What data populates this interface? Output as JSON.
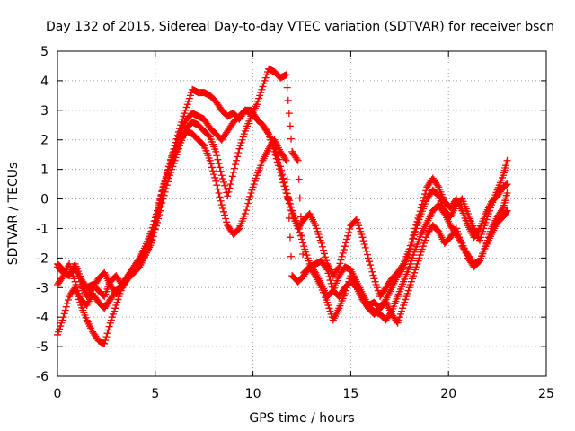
{
  "chart_data": {
    "type": "scatter",
    "title": "Day 132 of 2015, Sidereal Day-to-day VTEC variation (SDTVAR) for receiver bscn",
    "xlabel": "GPS time / hours",
    "ylabel": "SDTVAR / TECUs",
    "xlim": [
      0,
      25
    ],
    "ylim": [
      -6,
      5
    ],
    "xticks": [
      "0",
      "5",
      "10",
      "15",
      "20",
      "25"
    ],
    "yticks": [
      "-6",
      "-5",
      "-4",
      "-3",
      "-2",
      "-1",
      "0",
      "1",
      "2",
      "3",
      "4",
      "5"
    ],
    "grid": true,
    "marker": "+",
    "series_color": "#ff0000",
    "series": [
      {
        "x": [
          0.0,
          0.3,
          0.6,
          0.9,
          1.2,
          1.5,
          1.8,
          2.1,
          2.4,
          2.7,
          3.0,
          3.3,
          3.6,
          3.9,
          4.2,
          4.5,
          4.8,
          5.1,
          5.4,
          5.7,
          6.0,
          6.3,
          6.6,
          6.9,
          7.2,
          7.5,
          7.8,
          8.1,
          8.4,
          8.7,
          9.0,
          9.3,
          9.6,
          9.9,
          10.2,
          10.5,
          10.8,
          11.1,
          11.4,
          11.7,
          12.0,
          12.3,
          12.6,
          12.9,
          13.2,
          13.5,
          13.8,
          14.1,
          14.4,
          14.7,
          15.0,
          15.3,
          15.6,
          15.9,
          16.2,
          16.5,
          16.8,
          17.1,
          17.4,
          17.7,
          18.0,
          18.3,
          18.6,
          18.9,
          19.2,
          19.5,
          19.8,
          20.1,
          20.4,
          20.7,
          21.0,
          21.3,
          21.6,
          21.9,
          22.2,
          22.5,
          22.8,
          23.0
        ],
        "y": [
          -2.3,
          -2.5,
          -2.6,
          -2.2,
          -2.7,
          -3.0,
          -2.9,
          -3.1,
          -3.3,
          -2.8,
          -2.6,
          -2.9,
          -2.7,
          -2.5,
          -2.3,
          -1.9,
          -1.4,
          -0.6,
          0.3,
          1.1,
          1.8,
          2.5,
          3.1,
          3.7,
          3.6,
          3.6,
          3.5,
          3.3,
          3.0,
          2.8,
          2.9,
          2.7,
          3.0,
          3.0,
          2.7,
          2.5,
          2.2,
          1.8,
          1.1,
          0.3,
          -0.4,
          -0.9,
          -1.6,
          -2.2,
          -2.5,
          -2.9,
          -3.3,
          -3.1,
          -2.6,
          -2.3,
          -2.4,
          -2.8,
          -3.2,
          -3.6,
          -3.5,
          -3.7,
          -3.4,
          -3.0,
          -2.6,
          -2.3,
          -1.8,
          -1.1,
          -0.5,
          0.0,
          0.3,
          0.1,
          -0.4,
          -0.6,
          -0.2,
          0.0,
          -0.5,
          -1.0,
          -1.4,
          -0.8,
          -0.2,
          0.3,
          0.8,
          1.3
        ]
      },
      {
        "x": [
          0.0,
          0.3,
          0.6,
          0.9,
          1.2,
          1.5,
          1.8,
          2.1,
          2.4,
          2.7,
          3.0,
          3.3,
          3.6,
          3.9,
          4.2,
          4.5,
          4.8,
          5.1,
          5.4,
          5.7,
          6.0,
          6.3,
          6.6,
          6.9,
          7.2,
          7.5,
          7.8,
          8.1,
          8.4,
          8.7,
          9.0,
          9.3,
          9.6,
          9.9,
          10.2,
          10.5,
          10.8,
          11.1,
          11.4,
          11.7,
          12.0,
          12.3,
          12.6,
          12.9,
          13.2,
          13.5,
          13.8,
          14.1,
          14.4,
          14.7,
          15.0,
          15.3,
          15.6,
          15.9,
          16.2,
          16.5,
          16.8,
          17.1,
          17.4,
          17.7,
          18.0,
          18.3,
          18.6,
          18.9,
          19.2,
          19.5,
          19.8,
          20.1,
          20.4,
          20.7,
          21.0,
          21.3,
          21.6,
          21.9,
          22.2,
          22.5,
          22.8,
          23.0
        ],
        "y": [
          -2.9,
          -2.6,
          -2.2,
          -2.8,
          -3.4,
          -3.6,
          -3.2,
          -3.5,
          -3.7,
          -3.4,
          -3.1,
          -2.9,
          -2.6,
          -2.4,
          -2.1,
          -1.7,
          -1.2,
          -0.5,
          0.4,
          1.1,
          1.7,
          2.3,
          2.7,
          2.9,
          2.8,
          2.7,
          2.4,
          2.2,
          2.0,
          2.3,
          2.6,
          2.8,
          3.0,
          2.9,
          2.7,
          2.5,
          2.2,
          1.6,
          0.9,
          0.2,
          -0.5,
          -1.0,
          -0.7,
          -0.5,
          -0.9,
          -1.5,
          -2.2,
          -2.6,
          -2.3,
          -1.6,
          -0.9,
          -0.7,
          -1.3,
          -2.0,
          -2.7,
          -3.3,
          -3.0,
          -2.7,
          -2.5,
          -2.2,
          -1.7,
          -1.0,
          -0.3,
          0.4,
          0.7,
          0.4,
          -0.1,
          -0.3,
          0.0,
          -0.4,
          -0.9,
          -1.3,
          -1.0,
          -0.5,
          -0.1,
          0.1,
          0.4,
          0.5
        ]
      },
      {
        "x": [
          0.0,
          0.3,
          0.6,
          0.9,
          1.2,
          1.5,
          1.8,
          2.1,
          2.4,
          2.7,
          3.0,
          3.3,
          3.6,
          3.9,
          4.2,
          4.5,
          4.8,
          5.1,
          5.4,
          5.7,
          6.0,
          6.3,
          6.6,
          6.9,
          7.2,
          7.5,
          7.8,
          8.1,
          8.4,
          8.7,
          9.0,
          9.3,
          9.6,
          9.9,
          10.2,
          10.5,
          10.8,
          11.1,
          11.4,
          11.7,
          12.0,
          12.3,
          12.6,
          12.9,
          13.2,
          13.5,
          13.8,
          14.1,
          14.4,
          14.7,
          15.0,
          15.3,
          15.6,
          15.9,
          16.2,
          16.5,
          16.8,
          17.1,
          17.4,
          17.7,
          18.0,
          18.3,
          18.6,
          18.9,
          19.2,
          19.5,
          19.8,
          20.1,
          20.4,
          20.7,
          21.0,
          21.3,
          21.6,
          21.9,
          22.2,
          22.5,
          22.8,
          23.0
        ],
        "y": [
          -4.6,
          -4.0,
          -3.3,
          -3.0,
          -3.6,
          -4.1,
          -4.5,
          -4.8,
          -4.9,
          -4.2,
          -3.6,
          -3.0,
          -2.6,
          -2.3,
          -2.0,
          -1.6,
          -1.1,
          -0.4,
          0.4,
          1.0,
          1.5,
          2.0,
          2.3,
          2.2,
          2.0,
          1.8,
          1.3,
          0.6,
          -0.2,
          -0.9,
          -1.2,
          -1.0,
          -0.5,
          0.2,
          0.8,
          1.3,
          1.7,
          2.0,
          1.6,
          1.3,
          -2.6,
          -2.8,
          -2.6,
          -2.3,
          -2.6,
          -3.0,
          -3.5,
          -4.1,
          -3.7,
          -3.2,
          -2.6,
          -2.9,
          -3.3,
          -3.7,
          -3.9,
          -3.7,
          -3.5,
          -3.9,
          -4.2,
          -3.6,
          -3.0,
          -2.4,
          -1.8,
          -1.2,
          -0.9,
          -1.1,
          -1.5,
          -1.3,
          -1.0,
          -1.6,
          -1.9,
          -2.2,
          -2.1,
          -1.6,
          -1.0,
          -0.6,
          -0.3,
          0.2
        ]
      },
      {
        "x": [
          0.0,
          0.3,
          0.6,
          0.9,
          1.2,
          1.5,
          1.8,
          2.1,
          2.4,
          2.7,
          3.0,
          3.3,
          3.6,
          3.9,
          4.2,
          4.5,
          4.8,
          5.1,
          5.4,
          5.7,
          6.0,
          6.3,
          6.6,
          6.9,
          7.2,
          7.5,
          7.8,
          8.1,
          8.4,
          8.7,
          9.0,
          9.3,
          9.6,
          9.9,
          10.2,
          10.5,
          10.8,
          11.1,
          11.4,
          11.7,
          12.0,
          12.3,
          12.6,
          12.9,
          13.2,
          13.5,
          13.8,
          14.1,
          14.4,
          14.7,
          15.0,
          15.3,
          15.6,
          15.9,
          16.2,
          16.5,
          16.8,
          17.1,
          17.4,
          17.7,
          18.0,
          18.3,
          18.6,
          18.9,
          19.2,
          19.5,
          19.8,
          20.1,
          20.4,
          20.7,
          21.0,
          21.3,
          21.6,
          21.9,
          22.2,
          22.5,
          22.8,
          23.0
        ],
        "y": [
          -2.2,
          -2.4,
          -2.6,
          -2.3,
          -2.9,
          -3.3,
          -3.0,
          -2.7,
          -2.5,
          -2.9,
          -3.2,
          -3.0,
          -2.7,
          -2.4,
          -2.2,
          -1.9,
          -1.5,
          -0.8,
          0.0,
          0.7,
          1.3,
          1.9,
          2.4,
          2.6,
          2.5,
          2.3,
          2.1,
          1.6,
          0.8,
          0.1,
          0.9,
          1.7,
          2.3,
          2.8,
          3.2,
          3.8,
          4.4,
          4.3,
          4.1,
          4.2,
          1.6,
          1.3,
          -2.5,
          -2.3,
          -2.2,
          -2.1,
          -2.4,
          -3.1,
          -3.3,
          -3.0,
          -2.8,
          -3.0,
          -3.4,
          -3.7,
          -3.8,
          -3.9,
          -4.1,
          -3.8,
          -3.3,
          -2.8,
          -2.3,
          -1.7,
          -1.2,
          -0.8,
          -0.4,
          -0.2,
          -0.5,
          -0.9,
          -1.2,
          -1.5,
          -2.0,
          -2.3,
          -2.1,
          -1.6,
          -1.2,
          -0.8,
          -0.6,
          -0.4
        ]
      }
    ]
  }
}
